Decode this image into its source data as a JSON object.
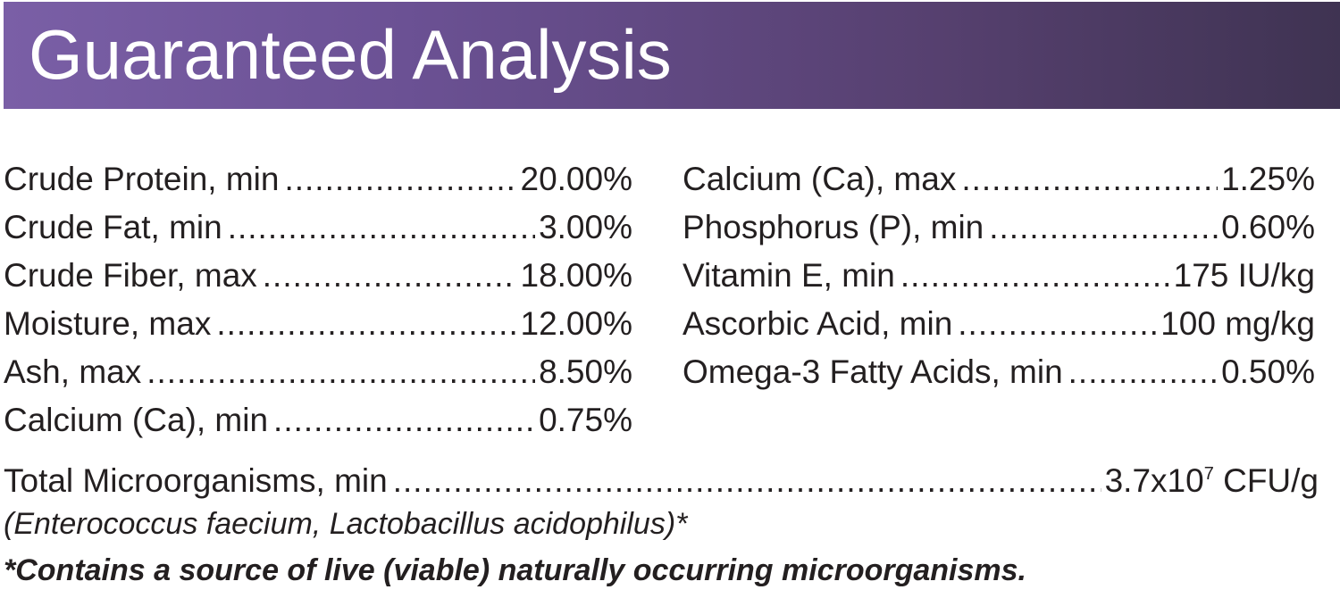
{
  "header": {
    "title": "Guaranteed Analysis",
    "color_start": "#7a5fa6",
    "color_end": "#3f3352"
  },
  "left_column": [
    {
      "label": "Crude Protein, min",
      "value": "20.00%"
    },
    {
      "label": "Crude Fat, min",
      "value": "3.00%"
    },
    {
      "label": "Crude Fiber, max",
      "value": "18.00%"
    },
    {
      "label": "Moisture, max",
      "value": "12.00%"
    },
    {
      "label": "Ash, max",
      "value": "8.50%"
    },
    {
      "label": "Calcium (Ca), min",
      "value": "0.75%"
    }
  ],
  "right_column": [
    {
      "label": "Calcium (Ca), max",
      "value": "1.25%"
    },
    {
      "label": "Phosphorus (P), min",
      "value": "0.60%"
    },
    {
      "label": "Vitamin E, min",
      "value": "175 IU/kg"
    },
    {
      "label": "Ascorbic Acid, min",
      "value": "100 mg/kg"
    },
    {
      "label": "Omega-3 Fatty Acids, min",
      "value": "0.50%"
    }
  ],
  "total": {
    "label": "Total Microorganisms, min",
    "value_base": "3.7x10",
    "value_exponent": "7",
    "value_unit": " CFU/g"
  },
  "organisms": "(Enterococcus faecium, Lactobacillus acidophilus)*",
  "note": "*Contains a source of live (viable) naturally occurring microorganisms."
}
